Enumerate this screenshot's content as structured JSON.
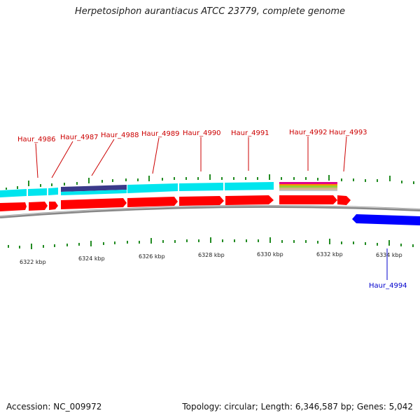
{
  "title": "Herpetosiphon aurantiacus ATCC 23779, complete genome",
  "footer": {
    "accession": "Accession: NC_009972",
    "topology": "Topology: circular; Length: 6,346,587 bp; Genes: 5,042"
  },
  "colors": {
    "forward_gene": "#ff0000",
    "reverse_gene": "#0000ff",
    "forward_label": "#cc0000",
    "reverse_label": "#0000cc",
    "cyan_track": "#00e5ee",
    "navy_feature": "#3a3a8a",
    "backbone": "#888888",
    "tick": "#228b22"
  },
  "scale_labels": [
    "6322 kbp",
    "6324 kbp",
    "6326 kbp",
    "6328 kbp",
    "6330 kbp",
    "6332 kbp",
    "6334 kbp"
  ],
  "forward_genes": [
    "Haur_4986",
    "Haur_4987",
    "Haur_4988",
    "Haur_4989",
    "Haur_4990",
    "Haur_4991",
    "Haur_4992",
    "Haur_4993"
  ],
  "reverse_genes": [
    "Haur_4994"
  ]
}
